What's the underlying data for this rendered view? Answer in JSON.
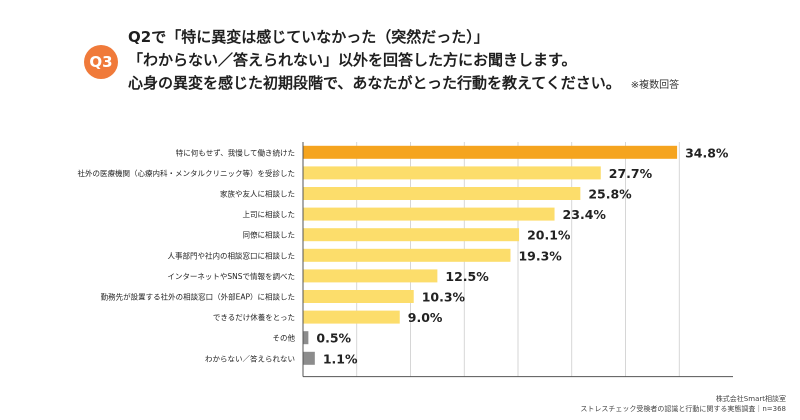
{
  "question": {
    "badge": "Q3",
    "line1": "Q2で「特に異変は感じていなかった（突然だった）」",
    "line2": "「わからない／答えられない」以外を回答した方にお聞きします。",
    "line3": "心身の異変を感じた初期段階で、あなたがとった行動を教えてください。",
    "note": "※複数回答"
  },
  "colors": {
    "badge": "#F07A3A",
    "top_bar": "#F5A41F",
    "bar": "#FCDD6B",
    "other_bar": "#8C8C8C",
    "axis": "#555555",
    "grid": "#CCCCCC"
  },
  "chart_data": {
    "type": "bar",
    "orientation": "horizontal",
    "categories": [
      "特に何もせず、我慢して働き続けた",
      "社外の医療機関（心療内科・メンタルクリニック等）を受診した",
      "家族や友人に相談した",
      "上司に相談した",
      "同僚に相談した",
      "人事部門や社内の相談窓口に相談した",
      "インターネットやSNSで情報を調べた",
      "勤務先が設置する社外の相談窓口（外部EAP）に相談した",
      "できるだけ休養をとった",
      "その他",
      "わからない／答えられない"
    ],
    "values": [
      34.8,
      27.7,
      25.8,
      23.4,
      20.1,
      19.3,
      12.5,
      10.3,
      9.0,
      0.5,
      1.1
    ],
    "value_labels": [
      "34.8%",
      "27.7%",
      "25.8%",
      "23.4%",
      "20.1%",
      "19.3%",
      "12.5%",
      "10.3%",
      "9.0%",
      "0.5%",
      "1.1%"
    ],
    "bar_colors": [
      "#F5A41F",
      "#FCDD6B",
      "#FCDD6B",
      "#FCDD6B",
      "#FCDD6B",
      "#FCDD6B",
      "#FCDD6B",
      "#FCDD6B",
      "#FCDD6B",
      "#8C8C8C",
      "#8C8C8C"
    ],
    "xlim": [
      0,
      40
    ],
    "grid": true,
    "legend": false
  },
  "footer": {
    "line1": "株式会社Smart相談室",
    "line2": "ストレスチェック受検者の認識と行動に関する実態調査｜n=368"
  }
}
